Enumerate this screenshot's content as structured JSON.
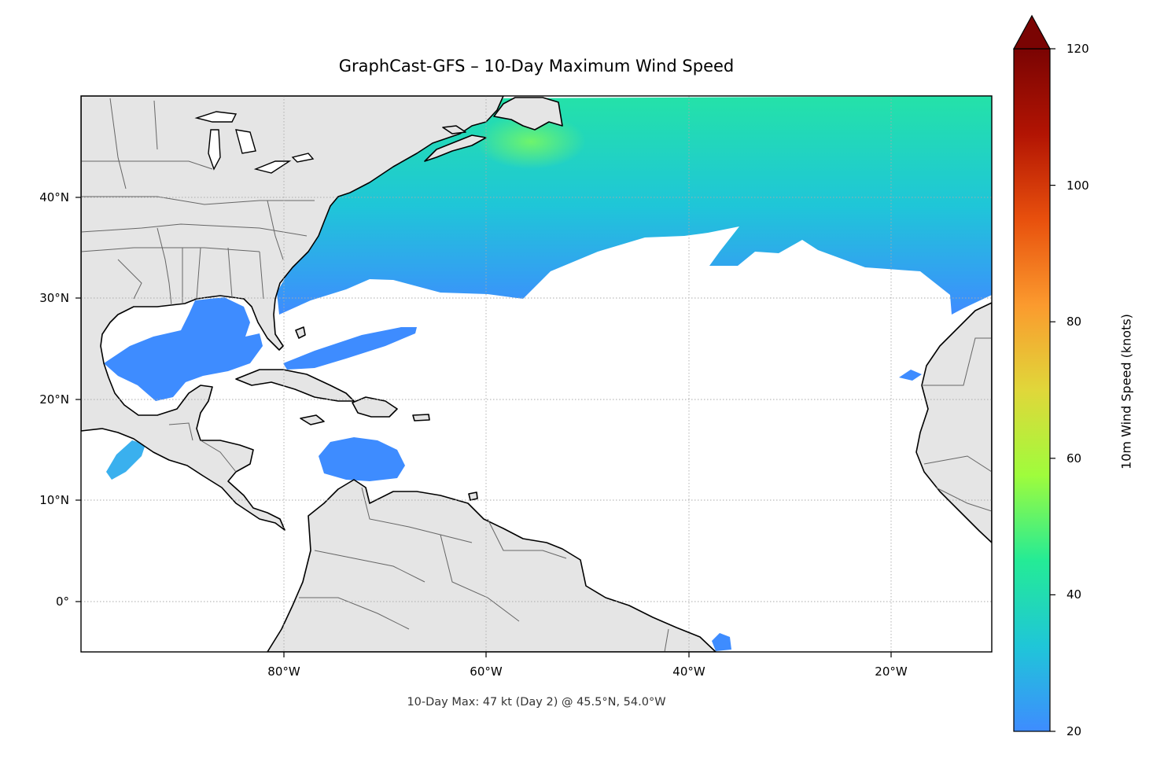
{
  "title": "GraphCast-GFS – 10-Day Maximum Wind Speed",
  "subtitle": "10-Day Max: 47 kt (Day 2) @ 45.5°N, 54.0°W",
  "map": {
    "extent": {
      "lon": [
        -100,
        -10
      ],
      "lat": [
        -5,
        50
      ]
    },
    "land_color": "#e5e5e5",
    "coast_color": "#000000",
    "border_color": "#666666",
    "grid": "dotted"
  },
  "x_ticks": [
    {
      "lon": -80,
      "label": "80°W"
    },
    {
      "lon": -60,
      "label": "60°W"
    },
    {
      "lon": -40,
      "label": "40°W"
    },
    {
      "lon": -20,
      "label": "20°W"
    }
  ],
  "y_ticks": [
    {
      "lat": 40,
      "label": "40°N"
    },
    {
      "lat": 30,
      "label": "30°N"
    },
    {
      "lat": 20,
      "label": "20°N"
    },
    {
      "lat": 10,
      "label": "10°N"
    },
    {
      "lat": 0,
      "label": "0°"
    }
  ],
  "colorbar": {
    "label": "10m Wind Speed (knots)",
    "min": 20,
    "max": 120,
    "extend": "max",
    "ticks": [
      {
        "value": 20,
        "label": "20"
      },
      {
        "value": 40,
        "label": "40"
      },
      {
        "value": 60,
        "label": "60"
      },
      {
        "value": 80,
        "label": "80"
      },
      {
        "value": 100,
        "label": "100"
      },
      {
        "value": 120,
        "label": "120"
      }
    ],
    "colors": [
      "#3e8cff",
      "#1fc6d8",
      "#24eb96",
      "#9ffc3c",
      "#e0d73a",
      "#fb9a2e",
      "#e8500d",
      "#b21403",
      "#7a0403"
    ]
  },
  "maximum": {
    "value_kt": 47,
    "day": 2,
    "lat": 45.5,
    "lon": -54.0
  }
}
